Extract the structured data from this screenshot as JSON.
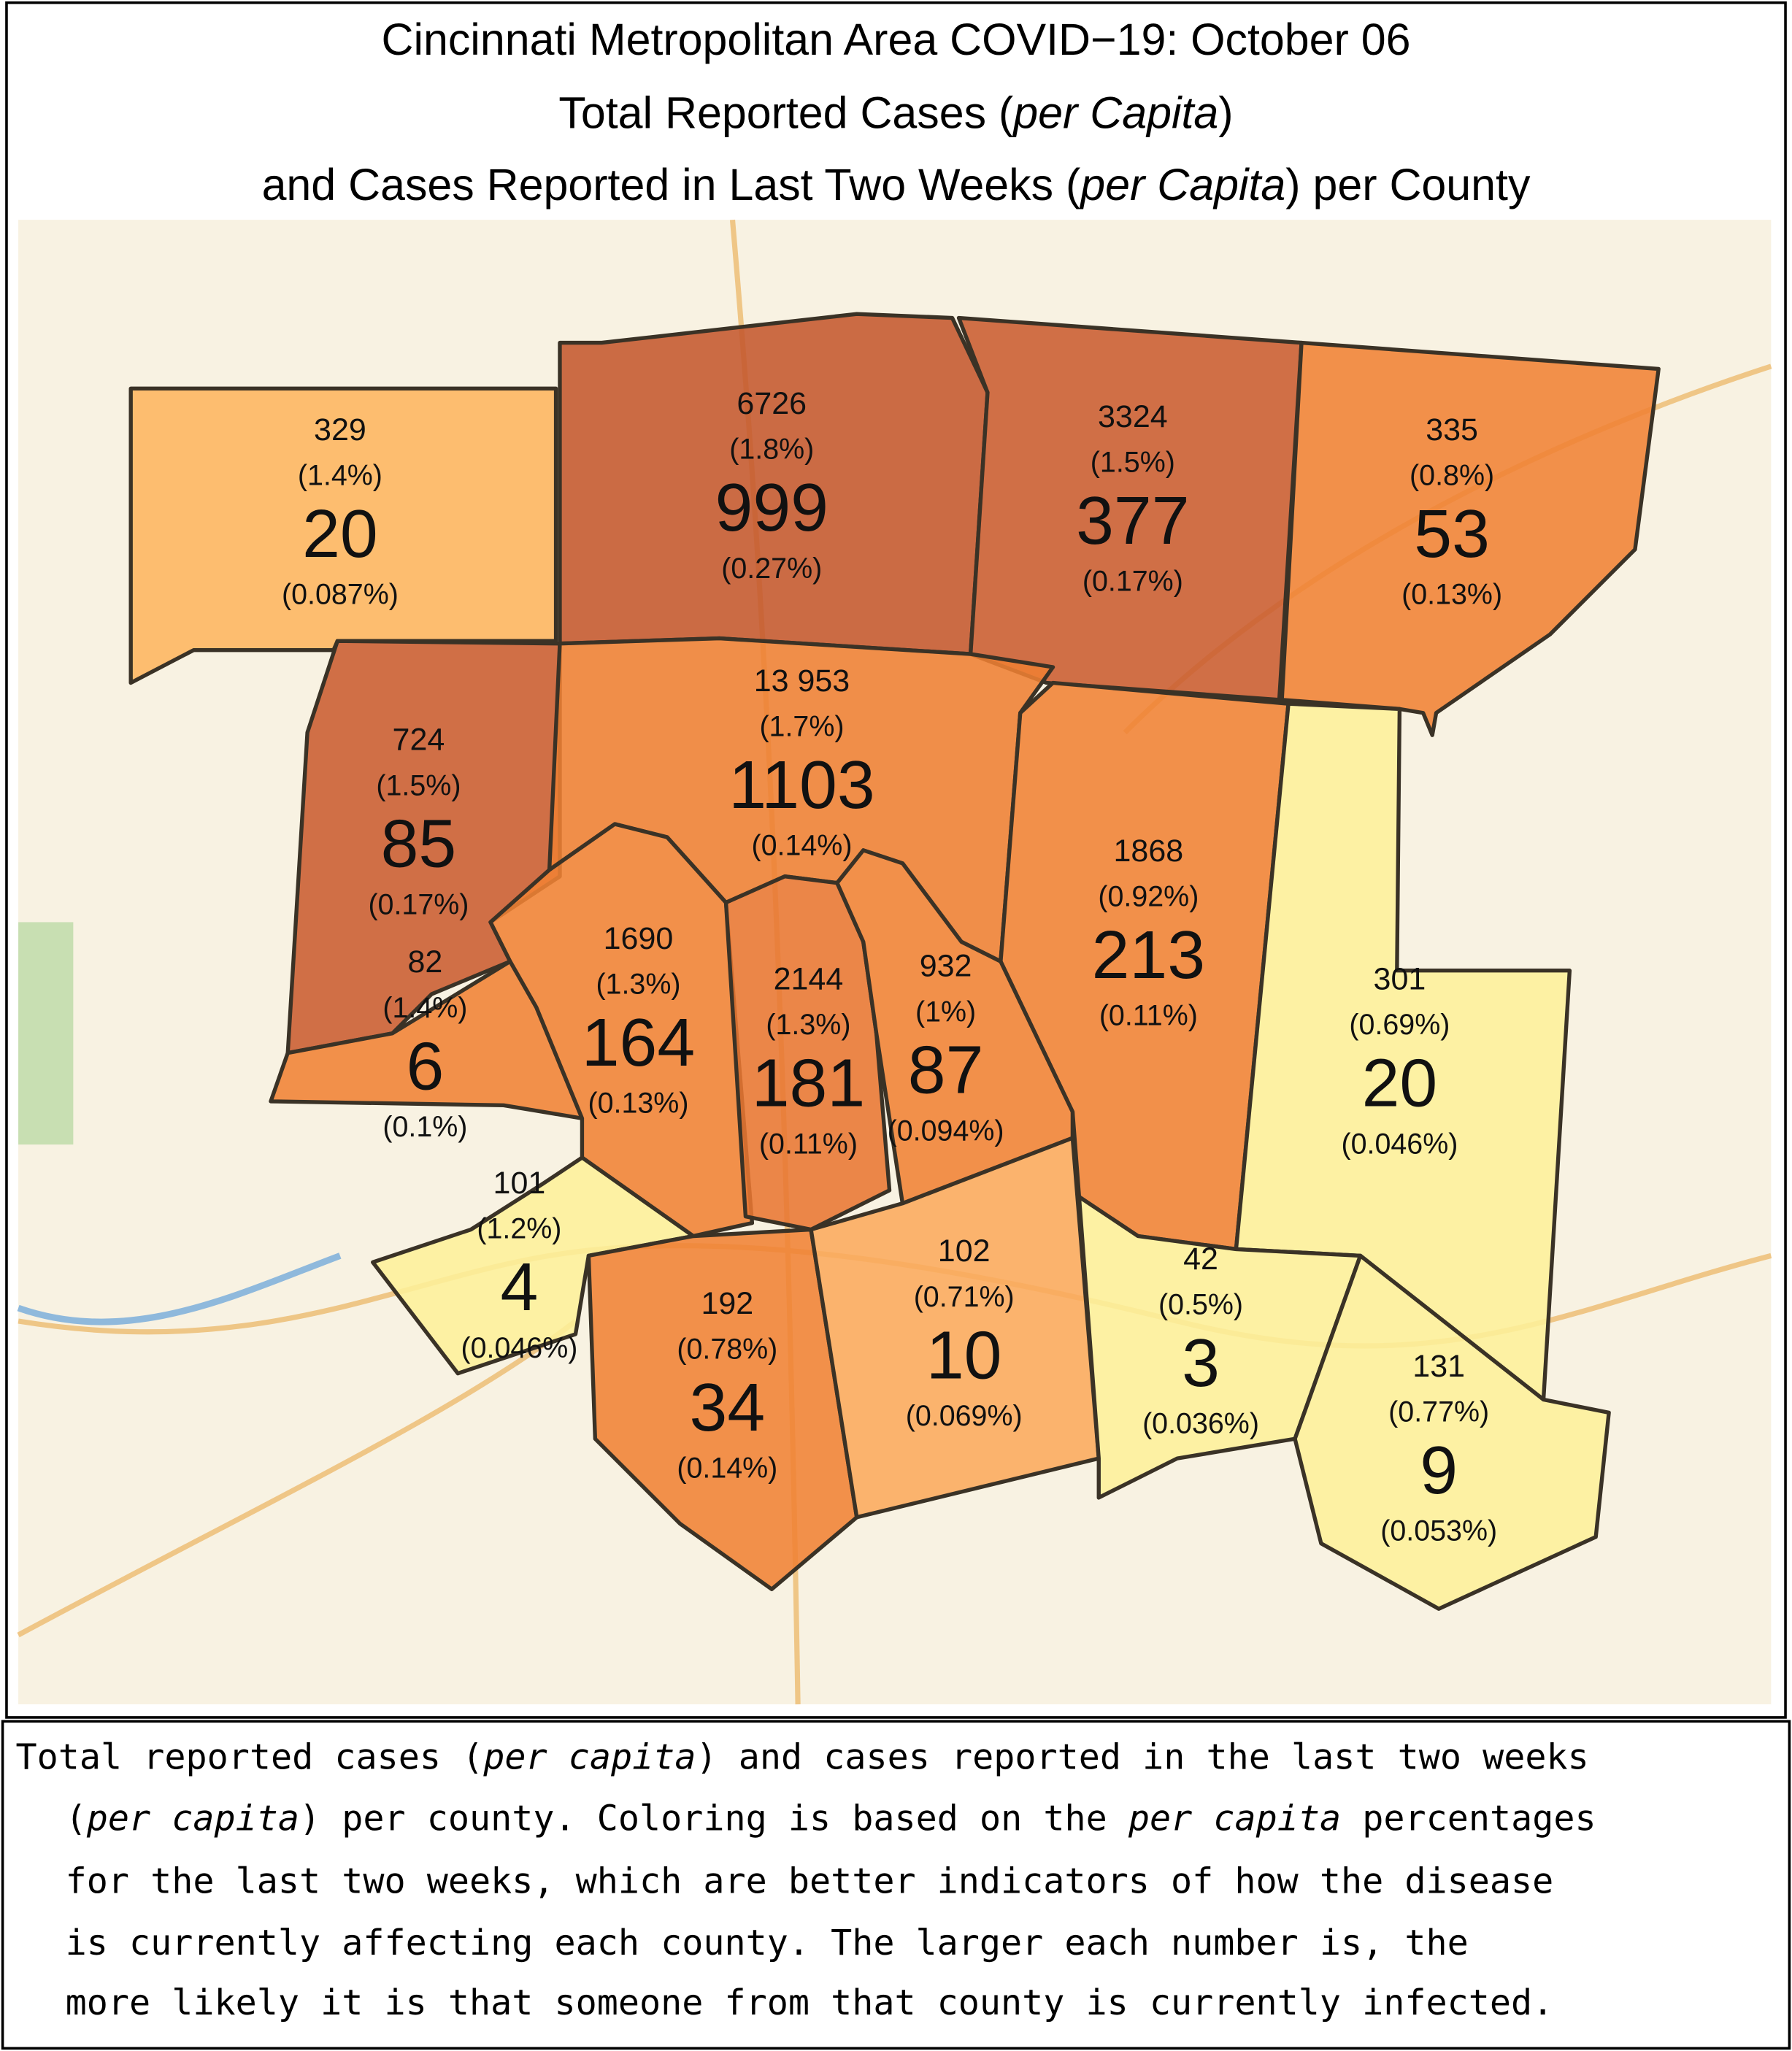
{
  "title": [
    [
      "Cincinnati Metropolitan Area COVID−19: October 06"
    ],
    [
      "Total Reported Cases (",
      "per Capita",
      ")"
    ],
    [
      "and Cases Reported in Last Two Weeks (",
      "per Capita",
      ") per County"
    ]
  ],
  "counties": [
    {
      "total": 329,
      "total_pct": "(1.4%)",
      "recent": 20,
      "recent_pct": "(0.087%)",
      "color": "#fdb55f"
    },
    {
      "total": 6726,
      "total_pct": "(1.8%)",
      "recent": 999,
      "recent_pct": "(0.27%)",
      "color": "#c4582d"
    },
    {
      "total": 3324,
      "total_pct": "(1.5%)",
      "recent": 377,
      "recent_pct": "(0.17%)",
      "color": "#c95c30"
    },
    {
      "total": 335,
      "total_pct": "(0.8%)",
      "recent": 53,
      "recent_pct": "(0.13%)",
      "color": "#f08234"
    },
    {
      "total": 724,
      "total_pct": "(1.5%)",
      "recent": 85,
      "recent_pct": "(0.17%)",
      "color": "#c95c30"
    },
    {
      "total": "13 953",
      "total_pct": "(1.7%)",
      "recent": 1103,
      "recent_pct": "(0.14%)",
      "color": "#ee7f33"
    },
    {
      "total": 1868,
      "total_pct": "(0.92%)",
      "recent": 213,
      "recent_pct": "(0.11%)",
      "color": "#f08234"
    },
    {
      "total": 82,
      "total_pct": "(1.4%)",
      "recent": 6,
      "recent_pct": "(0.1%)",
      "color": "#f08234"
    },
    {
      "total": 1690,
      "total_pct": "(1.3%)",
      "recent": 164,
      "recent_pct": "(0.13%)",
      "color": "#f08234"
    },
    {
      "total": 2144,
      "total_pct": "(1.3%)",
      "recent": 181,
      "recent_pct": "(0.11%)",
      "color": "#e87632"
    },
    {
      "total": 932,
      "total_pct": "(1%)",
      "recent": 87,
      "recent_pct": "(0.094%)",
      "color": "#f08234"
    },
    {
      "total": 301,
      "total_pct": "(0.69%)",
      "recent": 20,
      "recent_pct": "(0.046%)",
      "color": "#fdf09a"
    },
    {
      "total": 101,
      "total_pct": "(1.2%)",
      "recent": 4,
      "recent_pct": "(0.046%)",
      "color": "#fdf09a"
    },
    {
      "total": 192,
      "total_pct": "(0.78%)",
      "recent": 34,
      "recent_pct": "(0.14%)",
      "color": "#f08234"
    },
    {
      "total": 102,
      "total_pct": "(0.71%)",
      "recent": 10,
      "recent_pct": "(0.069%)",
      "color": "#fbaa5c"
    },
    {
      "total": 42,
      "total_pct": "(0.5%)",
      "recent": 3,
      "recent_pct": "(0.036%)",
      "color": "#fdf09a"
    },
    {
      "total": 131,
      "total_pct": "(0.77%)",
      "recent": 9,
      "recent_pct": "(0.053%)",
      "color": "#fdf09a"
    }
  ],
  "caption": [
    [
      "Total reported cases (",
      "per capita",
      ") and cases reported in the last two weeks"
    ],
    [
      "(",
      "per capita",
      ") per county. Coloring is based on the ",
      "per capita",
      " percentages"
    ],
    [
      "for the last two weeks, which are better indicators of how the disease"
    ],
    [
      "is currently affecting each county. The larger each number is, the"
    ],
    [
      "more likely it is that someone from that county is currently infected."
    ]
  ]
}
